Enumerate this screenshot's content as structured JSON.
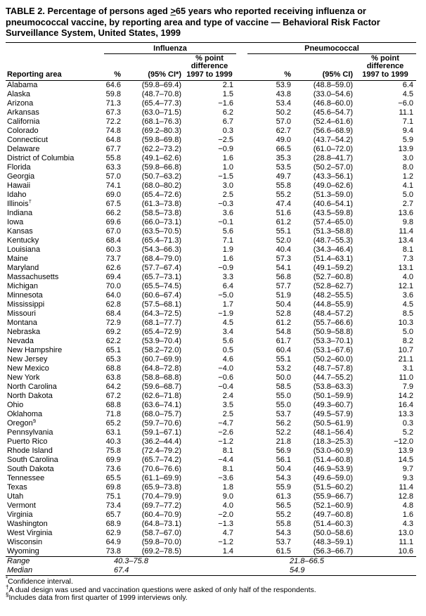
{
  "title": {
    "prefix": "TABLE 2. Percentage of persons aged ",
    "gte_symbol": ">",
    "suffix": "65 years who reported receiving influenza or pneumococcal vaccine, by reporting area and type of vaccine — Behavioral Risk Factor Surveillance System, United States, 1999"
  },
  "table": {
    "header": {
      "reporting_area": "Reporting area",
      "influenza": {
        "label": "Influenza",
        "pct": "%",
        "ci": "(95% CI*)",
        "diff": "% point\ndifference\n1997 to 1999"
      },
      "pneumococcal": {
        "label": "Pneumococcal",
        "pct": "%",
        "ci": "(95% CI)",
        "diff": "% point\ndifference\n1997 to 1999"
      }
    },
    "rows": [
      {
        "area": "Alabama",
        "flu_pct": "64.6",
        "flu_ci": "(59.8–69.4)",
        "flu_diff": "2.1",
        "pn_pct": "53.9",
        "pn_ci": "(48.8–59.0)",
        "pn_diff": "6.4"
      },
      {
        "area": "Alaska",
        "flu_pct": "59.8",
        "flu_ci": "(48.7–70.8)",
        "flu_diff": "1.5",
        "pn_pct": "43.8",
        "pn_ci": "(33.0–54.6)",
        "pn_diff": "4.5"
      },
      {
        "area": "Arizona",
        "flu_pct": "71.3",
        "flu_ci": "(65.4–77.3)",
        "flu_diff": "−1.6",
        "pn_pct": "53.4",
        "pn_ci": "(46.8–60.0)",
        "pn_diff": "−6.0"
      },
      {
        "area": "Arkansas",
        "flu_pct": "67.3",
        "flu_ci": "(63.0–71.5)",
        "flu_diff": "6.2",
        "pn_pct": "50.2",
        "pn_ci": "(45.6–54.7)",
        "pn_diff": "11.1"
      },
      {
        "area": "California",
        "flu_pct": "72.2",
        "flu_ci": "(68.1–76.3)",
        "flu_diff": "6.7",
        "pn_pct": "57.0",
        "pn_ci": "(52.4–61.6)",
        "pn_diff": "7.1"
      },
      {
        "area": "Colorado",
        "flu_pct": "74.8",
        "flu_ci": "(69.2–80.3)",
        "flu_diff": "0.3",
        "pn_pct": "62.7",
        "pn_ci": "(56.6–68.9)",
        "pn_diff": "9.4"
      },
      {
        "area": "Connecticut",
        "flu_pct": "64.8",
        "flu_ci": "(59.8–69.8)",
        "flu_diff": "−2.5",
        "pn_pct": "49.0",
        "pn_ci": "(43.7–54.2)",
        "pn_diff": "5.9"
      },
      {
        "area": "Delaware",
        "flu_pct": "67.7",
        "flu_ci": "(62.2–73.2)",
        "flu_diff": "−0.9",
        "pn_pct": "66.5",
        "pn_ci": "(61.0–72.0)",
        "pn_diff": "13.9"
      },
      {
        "area": "District of Columbia",
        "flu_pct": "55.8",
        "flu_ci": "(49.1–62.6)",
        "flu_diff": "1.6",
        "pn_pct": "35.3",
        "pn_ci": "(28.8–41.7)",
        "pn_diff": "3.0"
      },
      {
        "area": "Florida",
        "flu_pct": "63.3",
        "flu_ci": "(59.8–66.8)",
        "flu_diff": "1.0",
        "pn_pct": "53.5",
        "pn_ci": "(50.2–57.0)",
        "pn_diff": "8.0"
      },
      {
        "area": "Georgia",
        "flu_pct": "57.0",
        "flu_ci": "(50.7–63.2)",
        "flu_diff": "−1.5",
        "pn_pct": "49.7",
        "pn_ci": "(43.3–56.1)",
        "pn_diff": "1.2"
      },
      {
        "area": "Hawaii",
        "flu_pct": "74.1",
        "flu_ci": "(68.0–80.2)",
        "flu_diff": "3.0",
        "pn_pct": "55.8",
        "pn_ci": "(49.0–62.6)",
        "pn_diff": "4.1"
      },
      {
        "area": "Idaho",
        "flu_pct": "69.0",
        "flu_ci": "(65.4–72.6)",
        "flu_diff": "2.5",
        "pn_pct": "55.2",
        "pn_ci": "(51.3–59.0)",
        "pn_diff": "5.0"
      },
      {
        "area": "Illinois",
        "mark": "†",
        "flu_pct": "67.5",
        "flu_ci": "(61.3–73.8)",
        "flu_diff": "−0.3",
        "pn_pct": "47.4",
        "pn_ci": "(40.6–54.1)",
        "pn_diff": "2.7"
      },
      {
        "area": "Indiana",
        "flu_pct": "66.2",
        "flu_ci": "(58.5–73.8)",
        "flu_diff": "3.6",
        "pn_pct": "51.6",
        "pn_ci": "(43.5–59.8)",
        "pn_diff": "13.6"
      },
      {
        "area": "Iowa",
        "flu_pct": "69.6",
        "flu_ci": "(66.0–73.1)",
        "flu_diff": "−0.1",
        "pn_pct": "61.2",
        "pn_ci": "(57.4–65.0)",
        "pn_diff": "9.8"
      },
      {
        "area": "Kansas",
        "flu_pct": "67.0",
        "flu_ci": "(63.5–70.5)",
        "flu_diff": "5.6",
        "pn_pct": "55.1",
        "pn_ci": "(51.3–58.8)",
        "pn_diff": "11.4"
      },
      {
        "area": "Kentucky",
        "flu_pct": "68.4",
        "flu_ci": "(65.4–71.3)",
        "flu_diff": "7.1",
        "pn_pct": "52.0",
        "pn_ci": "(48.7–55.3)",
        "pn_diff": "13.4"
      },
      {
        "area": "Louisiana",
        "flu_pct": "60.3",
        "flu_ci": "(54.3–66.3)",
        "flu_diff": "1.9",
        "pn_pct": "40.4",
        "pn_ci": "(34.3–46.4)",
        "pn_diff": "8.1"
      },
      {
        "area": "Maine",
        "flu_pct": "73.7",
        "flu_ci": "(68.4–79.0)",
        "flu_diff": "1.6",
        "pn_pct": "57.3",
        "pn_ci": "(51.4–63.1)",
        "pn_diff": "7.3"
      },
      {
        "area": "Maryland",
        "flu_pct": "62.6",
        "flu_ci": "(57.7–67.4)",
        "flu_diff": "−0.9",
        "pn_pct": "54.1",
        "pn_ci": "(49.1–59.2)",
        "pn_diff": "13.1"
      },
      {
        "area": "Massachusetts",
        "flu_pct": "69.4",
        "flu_ci": "(65.7–73.1)",
        "flu_diff": "3.3",
        "pn_pct": "56.8",
        "pn_ci": "(52.7–60.8)",
        "pn_diff": "4.0"
      },
      {
        "area": "Michigan",
        "flu_pct": "70.0",
        "flu_ci": "(65.5–74.5)",
        "flu_diff": "6.4",
        "pn_pct": "57.7",
        "pn_ci": "(52.8–62.7)",
        "pn_diff": "12.1"
      },
      {
        "area": "Minnesota",
        "flu_pct": "64.0",
        "flu_ci": "(60.6–67.4)",
        "flu_diff": "−5.0",
        "pn_pct": "51.9",
        "pn_ci": "(48.2–55.5)",
        "pn_diff": "3.6"
      },
      {
        "area": "Mississippi",
        "flu_pct": "62.8",
        "flu_ci": "(57.5–68.1)",
        "flu_diff": "1.7",
        "pn_pct": "50.4",
        "pn_ci": "(44.8–55.9)",
        "pn_diff": "4.5"
      },
      {
        "area": "Missouri",
        "flu_pct": "68.4",
        "flu_ci": "(64.3–72.5)",
        "flu_diff": "−1.9",
        "pn_pct": "52.8",
        "pn_ci": "(48.4–57.2)",
        "pn_diff": "8.5"
      },
      {
        "area": "Montana",
        "flu_pct": "72.9",
        "flu_ci": "(68.1–77.7)",
        "flu_diff": "4.5",
        "pn_pct": "61.2",
        "pn_ci": "(55.7–66.6)",
        "pn_diff": "10.3"
      },
      {
        "area": "Nebraska",
        "flu_pct": "69.2",
        "flu_ci": "(65.4–72.9)",
        "flu_diff": "3.4",
        "pn_pct": "54.8",
        "pn_ci": "(50.9–58.8)",
        "pn_diff": "5.0"
      },
      {
        "area": "Nevada",
        "flu_pct": "62.2",
        "flu_ci": "(53.9–70.4)",
        "flu_diff": "5.6",
        "pn_pct": "61.7",
        "pn_ci": "(53.3–70.1)",
        "pn_diff": "8.2"
      },
      {
        "area": "New Hampshire",
        "flu_pct": "65.1",
        "flu_ci": "(58.2–72.0)",
        "flu_diff": "0.5",
        "pn_pct": "60.4",
        "pn_ci": "(53.1–67.6)",
        "pn_diff": "10.7"
      },
      {
        "area": "New Jersey",
        "flu_pct": "65.3",
        "flu_ci": "(60.7–69.9)",
        "flu_diff": "4.6",
        "pn_pct": "55.1",
        "pn_ci": "(50.2–60.0)",
        "pn_diff": "21.1"
      },
      {
        "area": "New Mexico",
        "flu_pct": "68.8",
        "flu_ci": "(64.8–72.8)",
        "flu_diff": "−4.0",
        "pn_pct": "53.2",
        "pn_ci": "(48.7–57.8)",
        "pn_diff": "3.1"
      },
      {
        "area": "New York",
        "flu_pct": "63.8",
        "flu_ci": "(58.8–68.8)",
        "flu_diff": "−0.6",
        "pn_pct": "50.0",
        "pn_ci": "(44.7–55.2)",
        "pn_diff": "11.0"
      },
      {
        "area": "North Carolina",
        "flu_pct": "64.2",
        "flu_ci": "(59.6–68.7)",
        "flu_diff": "−0.4",
        "pn_pct": "58.5",
        "pn_ci": "(53.8–63.3)",
        "pn_diff": "7.9"
      },
      {
        "area": "North Dakota",
        "flu_pct": "67.2",
        "flu_ci": "(62.6–71.8)",
        "flu_diff": "2.4",
        "pn_pct": "55.0",
        "pn_ci": "(50.1–59.9)",
        "pn_diff": "14.2"
      },
      {
        "area": "Ohio",
        "flu_pct": "68.8",
        "flu_ci": "(63.6–74.1)",
        "flu_diff": "3.5",
        "pn_pct": "55.0",
        "pn_ci": "(49.3–60.7)",
        "pn_diff": "16.4"
      },
      {
        "area": "Oklahoma",
        "flu_pct": "71.8",
        "flu_ci": "(68.0–75.7)",
        "flu_diff": "2.5",
        "pn_pct": "53.7",
        "pn_ci": "(49.5–57.9)",
        "pn_diff": "13.3"
      },
      {
        "area": "Oregon",
        "mark": "§",
        "flu_pct": "65.2",
        "flu_ci": "(59.7–70.6)",
        "flu_diff": "−4.7",
        "pn_pct": "56.2",
        "pn_ci": "(50.5–61.9)",
        "pn_diff": "0.3"
      },
      {
        "area": "Pennsylvania",
        "flu_pct": "63.1",
        "flu_ci": "(59.1–67.1)",
        "flu_diff": "−2.6",
        "pn_pct": "52.2",
        "pn_ci": "(48.1–56.4)",
        "pn_diff": "5.2"
      },
      {
        "area": "Puerto Rico",
        "flu_pct": "40.3",
        "flu_ci": "(36.2–44.4)",
        "flu_diff": "−1.2",
        "pn_pct": "21.8",
        "pn_ci": "(18.3–25.3)",
        "pn_diff": "−12.0"
      },
      {
        "area": "Rhode Island",
        "flu_pct": "75.8",
        "flu_ci": "(72.4–79.2)",
        "flu_diff": "8.1",
        "pn_pct": "56.9",
        "pn_ci": "(53.0–60.9)",
        "pn_diff": "13.9"
      },
      {
        "area": "South Carolina",
        "flu_pct": "69.9",
        "flu_ci": "(65.7–74.2)",
        "flu_diff": "−4.4",
        "pn_pct": "56.1",
        "pn_ci": "(51.4–60.8)",
        "pn_diff": "14.5"
      },
      {
        "area": "South Dakota",
        "flu_pct": "73.6",
        "flu_ci": "(70.6–76.6)",
        "flu_diff": "8.1",
        "pn_pct": "50.4",
        "pn_ci": "(46.9–53.9)",
        "pn_diff": "9.7"
      },
      {
        "area": "Tennessee",
        "flu_pct": "65.5",
        "flu_ci": "(61.1–69.9)",
        "flu_diff": "−3.6",
        "pn_pct": "54.3",
        "pn_ci": "(49.6–59.0)",
        "pn_diff": "9.3"
      },
      {
        "area": "Texas",
        "flu_pct": "69.8",
        "flu_ci": "(65.9–73.8)",
        "flu_diff": "1.8",
        "pn_pct": "55.9",
        "pn_ci": "(51.5–60.2)",
        "pn_diff": "11.4"
      },
      {
        "area": "Utah",
        "flu_pct": "75.1",
        "flu_ci": "(70.4–79.9)",
        "flu_diff": "9.0",
        "pn_pct": "61.3",
        "pn_ci": "(55.9–66.7)",
        "pn_diff": "12.8"
      },
      {
        "area": "Vermont",
        "flu_pct": "73.4",
        "flu_ci": "(69.7–77.2)",
        "flu_diff": "4.0",
        "pn_pct": "56.5",
        "pn_ci": "(52.1–60.9)",
        "pn_diff": "4.8"
      },
      {
        "area": "Virginia",
        "flu_pct": "65.7",
        "flu_ci": "(60.4–70.9)",
        "flu_diff": "−2.0",
        "pn_pct": "55.2",
        "pn_ci": "(49.7–60.8)",
        "pn_diff": "1.6"
      },
      {
        "area": "Washington",
        "flu_pct": "68.9",
        "flu_ci": "(64.8–73.1)",
        "flu_diff": "−1.3",
        "pn_pct": "55.8",
        "pn_ci": "(51.4–60.3)",
        "pn_diff": "4.3"
      },
      {
        "area": "West Virginia",
        "flu_pct": "62.9",
        "flu_ci": "(58.7–67.0)",
        "flu_diff": "4.7",
        "pn_pct": "54.3",
        "pn_ci": "(50.0–58.6)",
        "pn_diff": "13.0"
      },
      {
        "area": "Wisconsin",
        "flu_pct": "64.9",
        "flu_ci": "(59.8–70.0)",
        "flu_diff": "−1.2",
        "pn_pct": "53.7",
        "pn_ci": "(48.3–59.1)",
        "pn_diff": "11.1"
      },
      {
        "area": "Wyoming",
        "flu_pct": "73.8",
        "flu_ci": "(69.2–78.5)",
        "flu_diff": "1.4",
        "pn_pct": "61.5",
        "pn_ci": "(56.3–66.7)",
        "pn_diff": "10.6"
      }
    ],
    "summary": {
      "range": {
        "label": "Range",
        "influenza": "40.3–75.8",
        "pneumococcal": "21.8–66.5"
      },
      "median": {
        "label": "Median",
        "influenza": "67.4",
        "pneumococcal": "54.9"
      }
    }
  },
  "footnotes": [
    {
      "mark": "*",
      "text": "Confidence interval."
    },
    {
      "mark": "†",
      "text": "A dual design was used and vaccination questions were asked of only half of the respondents."
    },
    {
      "mark": "§",
      "text": "Includes data from first quarter of 1999 interviews only."
    }
  ]
}
